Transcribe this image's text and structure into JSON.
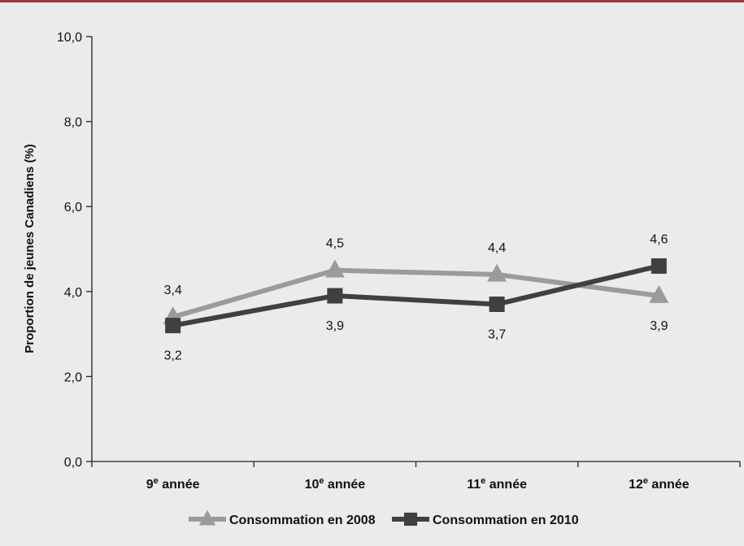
{
  "chart_data": {
    "type": "line",
    "categories": [
      {
        "num": "9",
        "sup": "e",
        "rest": " année"
      },
      {
        "num": "10",
        "sup": "e",
        "rest": " année"
      },
      {
        "num": "11",
        "sup": "e",
        "rest": " année"
      },
      {
        "num": "12",
        "sup": "e",
        "rest": " année"
      }
    ],
    "series": [
      {
        "name": "Consommation en 2008",
        "values": [
          3.4,
          4.5,
          4.4,
          3.9
        ],
        "labels": [
          "3,4",
          "4,5",
          "4,4",
          "3,9"
        ],
        "color": "#9b9b9b",
        "marker": "triangle"
      },
      {
        "name": "Consommation en 2010",
        "values": [
          3.2,
          3.9,
          3.7,
          4.6
        ],
        "labels": [
          "3,2",
          "3,9",
          "3,7",
          "4,6"
        ],
        "color": "#404040",
        "marker": "square"
      }
    ],
    "ylabel": "Proportion de jeunes Canadiens (%)",
    "xlabel": "",
    "ylim": [
      0,
      10
    ],
    "yticks": [
      "0,0",
      "2,0",
      "4,0",
      "6,0",
      "8,0",
      "10,0"
    ],
    "grid": false,
    "legend_position": "bottom"
  },
  "colors": {
    "top_rule": "#a0393a",
    "background": "#ebebeb"
  }
}
